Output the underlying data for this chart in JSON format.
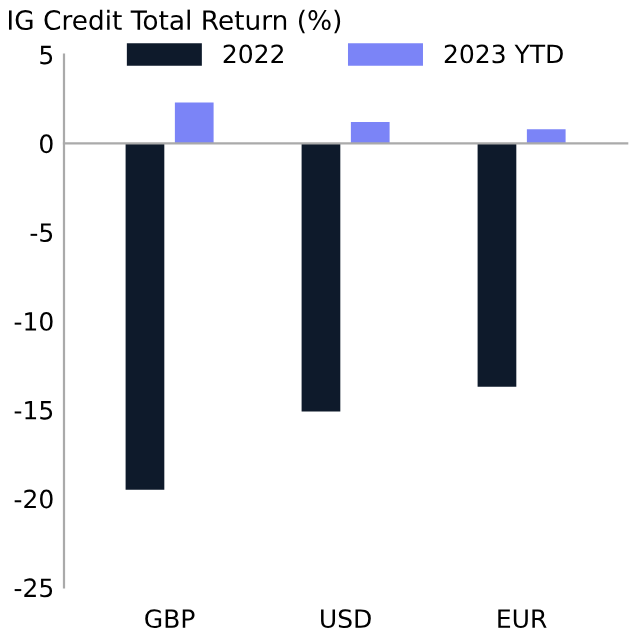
{
  "chart_data": {
    "type": "bar",
    "title": "IG Credit Total Return (%)",
    "categories": [
      "GBP",
      "USD",
      "EUR"
    ],
    "series": [
      {
        "name": "2022",
        "color": "#0e1a2b",
        "values": [
          -19.5,
          -15.1,
          -13.7
        ]
      },
      {
        "name": "2023 YTD",
        "color": "#7b84f7",
        "values": [
          2.3,
          1.2,
          0.8
        ]
      }
    ],
    "ylim": [
      -25,
      5
    ],
    "yticks": [
      -25,
      -20,
      -15,
      -10,
      -5,
      0,
      5
    ],
    "legend": "top"
  }
}
